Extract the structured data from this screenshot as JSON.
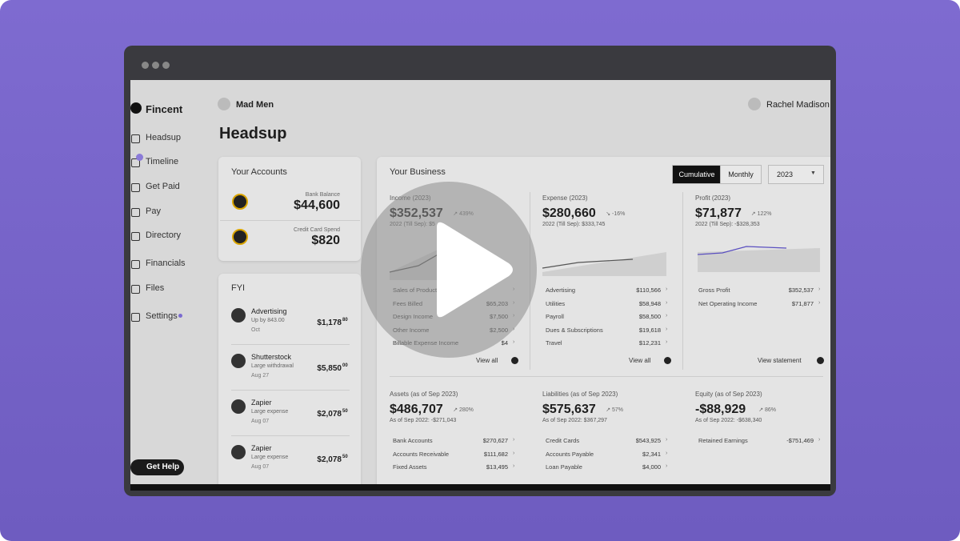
{
  "sidebar": {
    "brand": "Fincent",
    "nav": [
      "Headsup",
      "Timeline",
      "Get Paid",
      "Pay",
      "Directory",
      "Financials",
      "Files",
      "Settings"
    ],
    "help": "Get Help"
  },
  "header": {
    "org": "Mad Men",
    "user": "Rachel Madison",
    "title": "Headsup"
  },
  "accounts": {
    "title": "Your Accounts",
    "items": [
      {
        "label": "Bank Balance",
        "amount": "$44,600"
      },
      {
        "label": "Credit Card Spend",
        "amount": "$820"
      }
    ]
  },
  "fyi": {
    "title": "FYI",
    "items": [
      {
        "name": "Advertising",
        "note": "Up by 843.00",
        "date": "Oct",
        "amount": "$1,178",
        "cents": "80"
      },
      {
        "name": "Shutterstock",
        "note": "Large withdrawal",
        "date": "Aug 27",
        "amount": "$5,850",
        "cents": "00"
      },
      {
        "name": "Zapier",
        "note": "Large expense",
        "date": "Aug 07",
        "amount": "$2,078",
        "cents": "50"
      },
      {
        "name": "Zapier",
        "note": "Large expense",
        "date": "Aug 07",
        "amount": "$2,078",
        "cents": "50"
      }
    ]
  },
  "business": {
    "title": "Your Business",
    "modes": [
      "Cumulative",
      "Monthly"
    ],
    "year": "2023",
    "cards": [
      {
        "label": "Income (2023)",
        "value": "$352,537",
        "change": "↗ 439%",
        "prior": "2022 (Till Sep): $5",
        "rows": [
          {
            "name": "Sales of Product"
          },
          {
            "name": "Fees Billed",
            "amount": "$65,203"
          },
          {
            "name": "Design Income",
            "amount": "$7,500"
          },
          {
            "name": "Other Income",
            "amount": "$2,500"
          },
          {
            "name": "Billable Expense Income",
            "amount": "$4"
          }
        ],
        "link": "View all"
      },
      {
        "label": "Expense (2023)",
        "value": "$280,660",
        "change": "↘ -16%",
        "prior": "2022 (Till Sep): $333,745",
        "rows": [
          {
            "name": "Advertising",
            "amount": "$110,566"
          },
          {
            "name": "Utilities",
            "amount": "$58,948"
          },
          {
            "name": "Payroll",
            "amount": "$58,500"
          },
          {
            "name": "Dues & Subscriptions",
            "amount": "$19,618"
          },
          {
            "name": "Travel",
            "amount": "$12,231"
          }
        ],
        "link": "View all"
      },
      {
        "label": "Profit (2023)",
        "value": "$71,877",
        "change": "↗ 122%",
        "prior": "2022 (Till Sep): -$328,353",
        "rows": [
          {
            "name": "Gross Profit",
            "amount": "$352,537"
          },
          {
            "name": "Net Operating Income",
            "amount": "$71,877"
          }
        ],
        "link": "View statement"
      },
      {
        "label": "Assets (as of Sep 2023)",
        "value": "$486,707",
        "change": "↗ 280%",
        "prior": "As of Sep 2022: -$271,043",
        "rows": [
          {
            "name": "Bank Accounts",
            "amount": "$270,627"
          },
          {
            "name": "Accounts Receivable",
            "amount": "$111,682"
          },
          {
            "name": "Fixed Assets",
            "amount": "$13,495"
          }
        ]
      },
      {
        "label": "Liabilities (as of Sep 2023)",
        "value": "$575,637",
        "change": "↗ 57%",
        "prior": "As of Sep 2022: $367,297",
        "rows": [
          {
            "name": "Credit Cards",
            "amount": "$543,925"
          },
          {
            "name": "Accounts Payable",
            "amount": "$2,341"
          },
          {
            "name": "Loan Payable",
            "amount": "$4,000"
          }
        ]
      },
      {
        "label": "Equity (as of Sep 2023)",
        "value": "-$88,929",
        "change": "↗ 86%",
        "prior": "As of Sep 2022: -$638,340",
        "rows": [
          {
            "name": "Retained Earnings",
            "amount": "-$751,469"
          }
        ]
      }
    ]
  }
}
